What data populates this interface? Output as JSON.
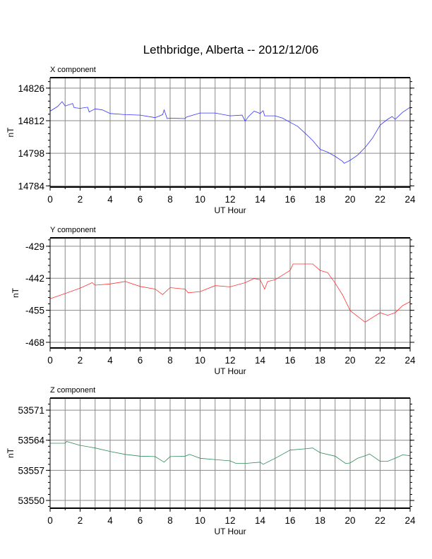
{
  "title": "Lethbridge, Alberta -- 2012/12/06",
  "chart_data": [
    {
      "type": "line",
      "title": "X component",
      "xlabel": "UT Hour",
      "ylabel": "nT",
      "xlim": [
        0,
        24
      ],
      "ylim": [
        14783.5,
        14830.5
      ],
      "xticks": [
        0,
        2,
        4,
        6,
        8,
        10,
        12,
        14,
        16,
        18,
        20,
        22,
        24
      ],
      "yticks": [
        14784,
        14798,
        14812,
        14826
      ],
      "grid": true,
      "color": "#3333ff",
      "x": [
        0,
        0.5,
        0.8,
        1.0,
        1.5,
        1.6,
        2,
        2.5,
        2.6,
        3,
        3.5,
        4,
        5,
        6,
        7,
        7.5,
        7.6,
        7.8,
        8,
        9,
        9.1,
        10,
        11,
        12,
        12.8,
        13,
        13.2,
        13.6,
        14,
        14.2,
        14.3,
        15,
        15.5,
        16,
        16.5,
        17,
        17.5,
        18,
        18.5,
        19,
        19.5,
        19.6,
        20,
        20.5,
        21,
        21.5,
        22,
        22.5,
        22.8,
        23,
        23.5,
        24
      ],
      "y": [
        14816.1,
        14818.1,
        14820.2,
        14818.3,
        14819.4,
        14817.6,
        14817.3,
        14817.8,
        14815.8,
        14817.1,
        14816.6,
        14815.1,
        14814.6,
        14814.4,
        14813.3,
        14814.6,
        14816.6,
        14812.9,
        14813.1,
        14812.9,
        14813.6,
        14815.3,
        14815.3,
        14814.1,
        14814.4,
        14811.8,
        14813.6,
        14816.1,
        14815.1,
        14816.3,
        14814.1,
        14814.1,
        14813.1,
        14811.3,
        14809.6,
        14806.6,
        14803.5,
        14799.7,
        14798.5,
        14796.7,
        14794.5,
        14793.7,
        14795.0,
        14797.2,
        14800.5,
        14804.6,
        14810.1,
        14812.6,
        14813.8,
        14812.6,
        14815.6,
        14817.8
      ]
    },
    {
      "type": "line",
      "title": "Y component",
      "xlabel": "UT Hour",
      "ylabel": "nT",
      "xlim": [
        0,
        24
      ],
      "ylim": [
        -470.3,
        -425.6
      ],
      "xticks": [
        0,
        2,
        4,
        6,
        8,
        10,
        12,
        14,
        16,
        18,
        20,
        22,
        24
      ],
      "yticks": [
        -468,
        -455,
        -442,
        -429
      ],
      "grid": true,
      "color": "#ff3333",
      "x": [
        0,
        1,
        2,
        2.8,
        3,
        4,
        5,
        6,
        7,
        7.5,
        8,
        9,
        9.2,
        10,
        11,
        12,
        13,
        13.6,
        14,
        14.3,
        14.5,
        15,
        15.5,
        16,
        16.2,
        17,
        17.5,
        18,
        18.5,
        19,
        19.5,
        20,
        20.5,
        21,
        21.5,
        22,
        22.5,
        23,
        23.5,
        24
      ],
      "y": [
        -450.3,
        -448.2,
        -446.0,
        -443.8,
        -444.8,
        -444.3,
        -443.3,
        -445.3,
        -446.4,
        -448.6,
        -445.8,
        -446.4,
        -447.9,
        -447.4,
        -445.0,
        -445.5,
        -443.8,
        -442.1,
        -442.6,
        -446.4,
        -443.3,
        -442.6,
        -440.7,
        -438.8,
        -436.2,
        -436.2,
        -436.2,
        -438.8,
        -439.7,
        -444.0,
        -448.8,
        -455.1,
        -457.5,
        -459.8,
        -457.9,
        -456.0,
        -457.0,
        -456.0,
        -453.1,
        -451.5
      ]
    },
    {
      "type": "line",
      "title": "Z component",
      "xlabel": "UT Hour",
      "ylabel": "nT",
      "xlim": [
        0,
        24
      ],
      "ylim": [
        53548.2,
        53573.8
      ],
      "xticks": [
        0,
        2,
        4,
        6,
        8,
        10,
        12,
        14,
        16,
        18,
        20,
        22,
        24
      ],
      "yticks": [
        53550,
        53557,
        53564,
        53571
      ],
      "grid": true,
      "color": "#2e8b57",
      "x": [
        0,
        1,
        1.1,
        2,
        3,
        4,
        5,
        6,
        7,
        7.6,
        8,
        9,
        9.3,
        10,
        11,
        12,
        12.4,
        13,
        14,
        14.2,
        15,
        16,
        17,
        17.5,
        18,
        19,
        19.7,
        20,
        20.5,
        21,
        21.3,
        22,
        22.5,
        23,
        23.5,
        24
      ],
      "y": [
        53563.3,
        53563.3,
        53563.7,
        53562.8,
        53562.2,
        53561.4,
        53560.7,
        53560.3,
        53560.2,
        53558.9,
        53560.2,
        53560.3,
        53560.7,
        53559.8,
        53559.5,
        53559.2,
        53558.6,
        53558.6,
        53558.9,
        53558.4,
        53559.8,
        53561.7,
        53562.0,
        53562.2,
        53561.1,
        53560.3,
        53558.6,
        53558.7,
        53559.8,
        53560.4,
        53560.8,
        53559.1,
        53559.1,
        53559.8,
        53560.6,
        53560.4
      ]
    }
  ]
}
